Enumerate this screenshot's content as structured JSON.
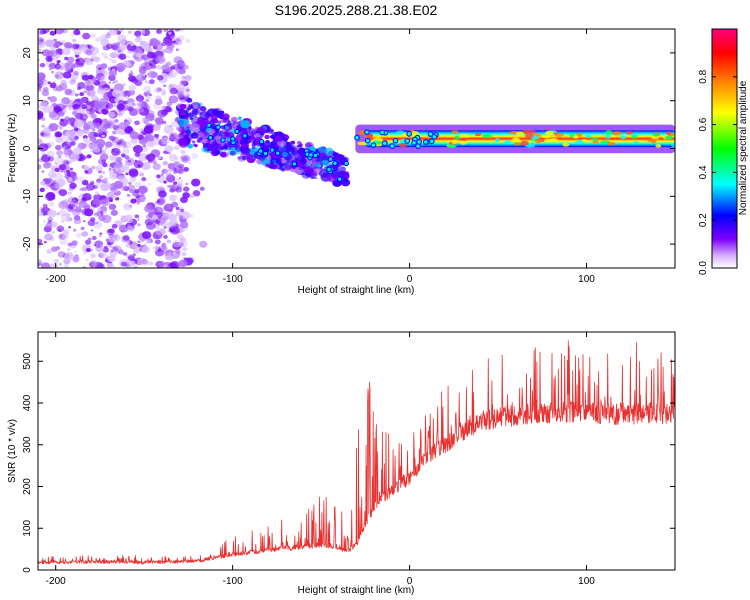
{
  "title": "S196.2025.288.21.38.E02",
  "chart_data": [
    {
      "type": "heatmap",
      "title": "S196.2025.288.21.38.E02",
      "xlabel": "Height of straight line (km)",
      "ylabel": "Frequency (Hz)",
      "xlim": [
        -210,
        150
      ],
      "ylim": [
        -25,
        25
      ],
      "x_ticks": [
        -200,
        -100,
        0,
        100
      ],
      "y_ticks": [
        -20,
        -10,
        0,
        10,
        20
      ],
      "grid": false,
      "colorbar": {
        "label": "Normalized spectral amplitude",
        "range": [
          0,
          1
        ],
        "ticks": [
          0.0,
          0.2,
          0.4,
          0.6,
          0.8
        ],
        "colormap": [
          "#ffffff",
          "#d9b3ff",
          "#7f00ff",
          "#0000ff",
          "#00ffff",
          "#00ff00",
          "#ffff00",
          "#ff8000",
          "#ff0000",
          "#ff0080"
        ]
      },
      "features": [
        {
          "x_range": [
            -210,
            -125
          ],
          "y_range": [
            -25,
            25
          ],
          "description": "broadband purple speckle noise",
          "amplitude": 0.1
        },
        {
          "x_range": [
            -130,
            -35
          ],
          "y_range": [
            -10,
            12
          ],
          "description": "descending streak from about 6 Hz to -5 Hz",
          "amplitude": 0.3
        },
        {
          "x_range": [
            -35,
            150
          ],
          "y_range": [
            0,
            4
          ],
          "description": "narrow band near 2 Hz",
          "amplitude": 0.85
        }
      ]
    },
    {
      "type": "line",
      "xlabel": "Height of straight line (km)",
      "ylabel": "SNR (10 * v/v)",
      "xlim": [
        -210,
        150
      ],
      "ylim": [
        0,
        570
      ],
      "x_ticks": [
        -200,
        -100,
        0,
        100
      ],
      "y_ticks": [
        0,
        100,
        200,
        300,
        400,
        500
      ],
      "grid": false,
      "series": [
        {
          "name": "SNR",
          "color": "#e83030",
          "x": [
            -210,
            -180,
            -150,
            -120,
            -110,
            -100,
            -90,
            -80,
            -70,
            -60,
            -50,
            -40,
            -35,
            -30,
            -25,
            -20,
            -15,
            -10,
            -5,
            0,
            5,
            10,
            15,
            20,
            30,
            40,
            50,
            60,
            70,
            80,
            90,
            100,
            110,
            120,
            130,
            140,
            150
          ],
          "base": [
            18,
            20,
            18,
            22,
            30,
            38,
            42,
            48,
            52,
            55,
            60,
            55,
            45,
            60,
            110,
            150,
            175,
            190,
            205,
            220,
            245,
            270,
            285,
            300,
            330,
            355,
            365,
            370,
            372,
            375,
            378,
            378,
            375,
            372,
            375,
            375,
            375
          ],
          "peak": [
            32,
            36,
            38,
            40,
            60,
            80,
            100,
            110,
            130,
            150,
            180,
            160,
            100,
            300,
            480,
            420,
            380,
            330,
            300,
            320,
            340,
            380,
            420,
            440,
            480,
            500,
            520,
            530,
            540,
            550,
            555,
            560,
            555,
            550,
            550,
            545,
            540
          ]
        }
      ]
    }
  ]
}
